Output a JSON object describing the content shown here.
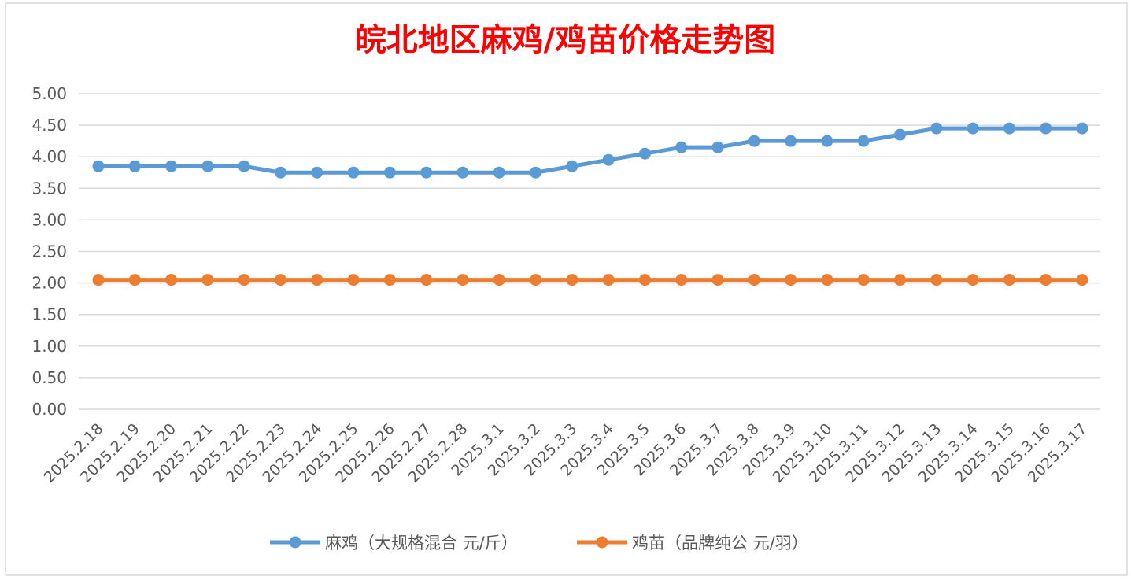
{
  "chart_data": {
    "type": "line",
    "title": "皖北地区麻鸡/鸡苗价格走势图",
    "xlabel": "",
    "ylabel": "",
    "ylim": [
      0,
      5
    ],
    "yticks": [
      "0.00",
      "0.50",
      "1.00",
      "1.50",
      "2.00",
      "2.50",
      "3.00",
      "3.50",
      "4.00",
      "4.50",
      "5.00"
    ],
    "grid": true,
    "legend_position": "bottom",
    "categories": [
      "2025.2.18",
      "2025.2.19",
      "2025.2.20",
      "2025.2.21",
      "2025.2.22",
      "2025.2.23",
      "2025.2.24",
      "2025.2.25",
      "2025.2.26",
      "2025.2.27",
      "2025.2.28",
      "2025.3.1",
      "2025.3.2",
      "2025.3.3",
      "2025.3.4",
      "2025.3.5",
      "2025.3.6",
      "2025.3.7",
      "2025.3.8",
      "2025.3.9",
      "2025.3.10",
      "2025.3.11",
      "2025.3.12",
      "2025.3.13",
      "2025.3.14",
      "2025.3.15",
      "2025.3.16",
      "2025.3.17"
    ],
    "series": [
      {
        "name": "麻鸡（大规格混合 元/斤）",
        "color": "#5b9bd5",
        "values": [
          3.85,
          3.85,
          3.85,
          3.85,
          3.85,
          3.75,
          3.75,
          3.75,
          3.75,
          3.75,
          3.75,
          3.75,
          3.75,
          3.85,
          3.95,
          4.05,
          4.15,
          4.15,
          4.25,
          4.25,
          4.25,
          4.25,
          4.35,
          4.45,
          4.45,
          4.45,
          4.45,
          4.45
        ]
      },
      {
        "name": "鸡苗（品牌纯公 元/羽）",
        "color": "#ed7d31",
        "values": [
          2.05,
          2.05,
          2.05,
          2.05,
          2.05,
          2.05,
          2.05,
          2.05,
          2.05,
          2.05,
          2.05,
          2.05,
          2.05,
          2.05,
          2.05,
          2.05,
          2.05,
          2.05,
          2.05,
          2.05,
          2.05,
          2.05,
          2.05,
          2.05,
          2.05,
          2.05,
          2.05,
          2.05
        ]
      }
    ]
  },
  "colors": {
    "title": "#ff0000",
    "grid": "#d9d9d9",
    "text": "#595959",
    "border": "#d9d9d9"
  }
}
